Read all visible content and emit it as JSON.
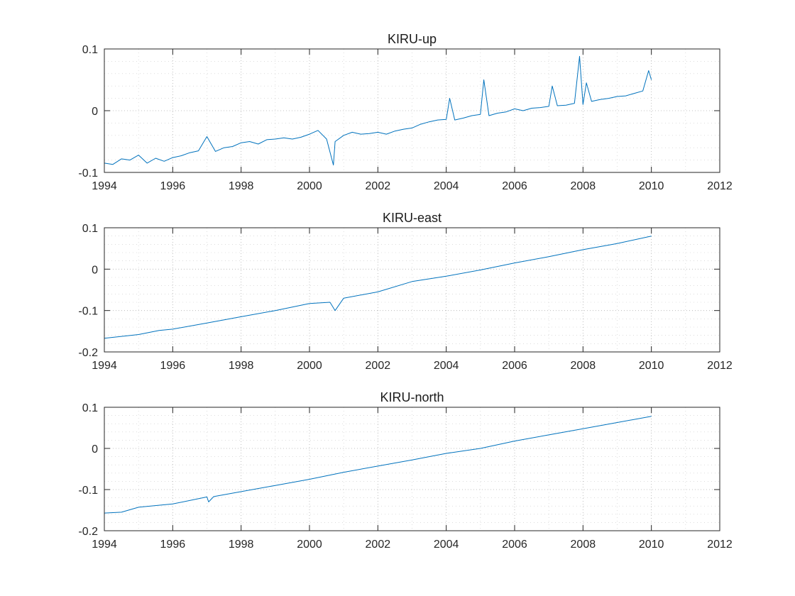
{
  "chart_data": [
    {
      "type": "line",
      "title": "KIRU-up",
      "xlim": [
        1994,
        2012
      ],
      "ylim": [
        -0.1,
        0.1
      ],
      "xticks": [
        1994,
        1996,
        1998,
        2000,
        2002,
        2004,
        2006,
        2008,
        2010,
        2012
      ],
      "yticks": [
        -0.1,
        0,
        0.1
      ],
      "ytick_labels": [
        "-0.1",
        "0",
        "0.1"
      ],
      "grid": "major and minor, dotted",
      "color": "#0072BD",
      "x": [
        1994.0,
        1994.25,
        1994.5,
        1994.75,
        1995.0,
        1995.25,
        1995.5,
        1995.75,
        1996.0,
        1996.25,
        1996.5,
        1996.75,
        1997.0,
        1997.25,
        1997.5,
        1997.75,
        1998.0,
        1998.25,
        1998.5,
        1998.75,
        1999.0,
        1999.25,
        1999.5,
        1999.75,
        2000.0,
        2000.25,
        2000.5,
        2000.7,
        2000.75,
        2001.0,
        2001.25,
        2001.5,
        2001.75,
        2002.0,
        2002.25,
        2002.5,
        2002.75,
        2003.0,
        2003.25,
        2003.5,
        2003.75,
        2004.0,
        2004.1,
        2004.25,
        2004.5,
        2004.75,
        2005.0,
        2005.1,
        2005.25,
        2005.5,
        2005.75,
        2006.0,
        2006.25,
        2006.5,
        2006.75,
        2007.0,
        2007.1,
        2007.25,
        2007.5,
        2007.75,
        2007.9,
        2008.0,
        2008.1,
        2008.25,
        2008.5,
        2008.75,
        2009.0,
        2009.25,
        2009.5,
        2009.75,
        2009.92,
        2010.0
      ],
      "y": [
        -0.085,
        -0.087,
        -0.078,
        -0.08,
        -0.072,
        -0.085,
        -0.077,
        -0.082,
        -0.076,
        -0.073,
        -0.068,
        -0.065,
        -0.042,
        -0.066,
        -0.06,
        -0.058,
        -0.052,
        -0.05,
        -0.054,
        -0.047,
        -0.046,
        -0.044,
        -0.046,
        -0.043,
        -0.038,
        -0.032,
        -0.046,
        -0.088,
        -0.05,
        -0.04,
        -0.035,
        -0.038,
        -0.037,
        -0.035,
        -0.038,
        -0.033,
        -0.03,
        -0.028,
        -0.022,
        -0.018,
        -0.015,
        -0.014,
        0.02,
        -0.015,
        -0.012,
        -0.008,
        -0.006,
        0.05,
        -0.008,
        -0.004,
        -0.002,
        0.003,
        0.0,
        0.004,
        0.005,
        0.007,
        0.04,
        0.008,
        0.009,
        0.012,
        0.088,
        0.01,
        0.045,
        0.015,
        0.018,
        0.02,
        0.023,
        0.024,
        0.028,
        0.032,
        0.065,
        0.05
      ]
    },
    {
      "type": "line",
      "title": "KIRU-east",
      "xlim": [
        1994,
        2012
      ],
      "ylim": [
        -0.2,
        0.1
      ],
      "xticks": [
        1994,
        1996,
        1998,
        2000,
        2002,
        2004,
        2006,
        2008,
        2010,
        2012
      ],
      "yticks": [
        -0.2,
        -0.1,
        0,
        0.1
      ],
      "ytick_labels": [
        "-0.2",
        "-0.1",
        "0",
        "0.1"
      ],
      "grid": "major and minor, dotted",
      "color": "#0072BD",
      "x": [
        1994.0,
        1995.0,
        1995.6,
        1996.0,
        1997.0,
        1998.0,
        1999.0,
        2000.0,
        2000.6,
        2000.75,
        2001.0,
        2002.0,
        2003.0,
        2004.0,
        2005.0,
        2006.0,
        2007.0,
        2008.0,
        2009.0,
        2010.0
      ],
      "y": [
        -0.167,
        -0.158,
        -0.148,
        -0.145,
        -0.13,
        -0.115,
        -0.1,
        -0.083,
        -0.08,
        -0.1,
        -0.07,
        -0.055,
        -0.03,
        -0.017,
        -0.002,
        0.015,
        0.03,
        0.047,
        0.062,
        0.08
      ]
    },
    {
      "type": "line",
      "title": "KIRU-north",
      "xlim": [
        1994,
        2012
      ],
      "ylim": [
        -0.2,
        0.1
      ],
      "xticks": [
        1994,
        1996,
        1998,
        2000,
        2002,
        2004,
        2006,
        2008,
        2010,
        2012
      ],
      "yticks": [
        -0.2,
        -0.1,
        0,
        0.1
      ],
      "ytick_labels": [
        "-0.2",
        "-0.1",
        "0",
        "0.1"
      ],
      "grid": "major and minor, dotted",
      "color": "#0072BD",
      "x": [
        1994.0,
        1994.5,
        1995.0,
        1996.0,
        1997.0,
        1997.05,
        1997.2,
        1998.0,
        1999.0,
        2000.0,
        2001.0,
        2002.0,
        2003.0,
        2004.0,
        2005.0,
        2006.0,
        2007.0,
        2008.0,
        2009.0,
        2010.0
      ],
      "y": [
        -0.157,
        -0.155,
        -0.143,
        -0.135,
        -0.118,
        -0.13,
        -0.117,
        -0.105,
        -0.09,
        -0.075,
        -0.058,
        -0.043,
        -0.028,
        -0.012,
        0.0,
        0.018,
        0.033,
        0.048,
        0.063,
        0.078
      ]
    }
  ]
}
